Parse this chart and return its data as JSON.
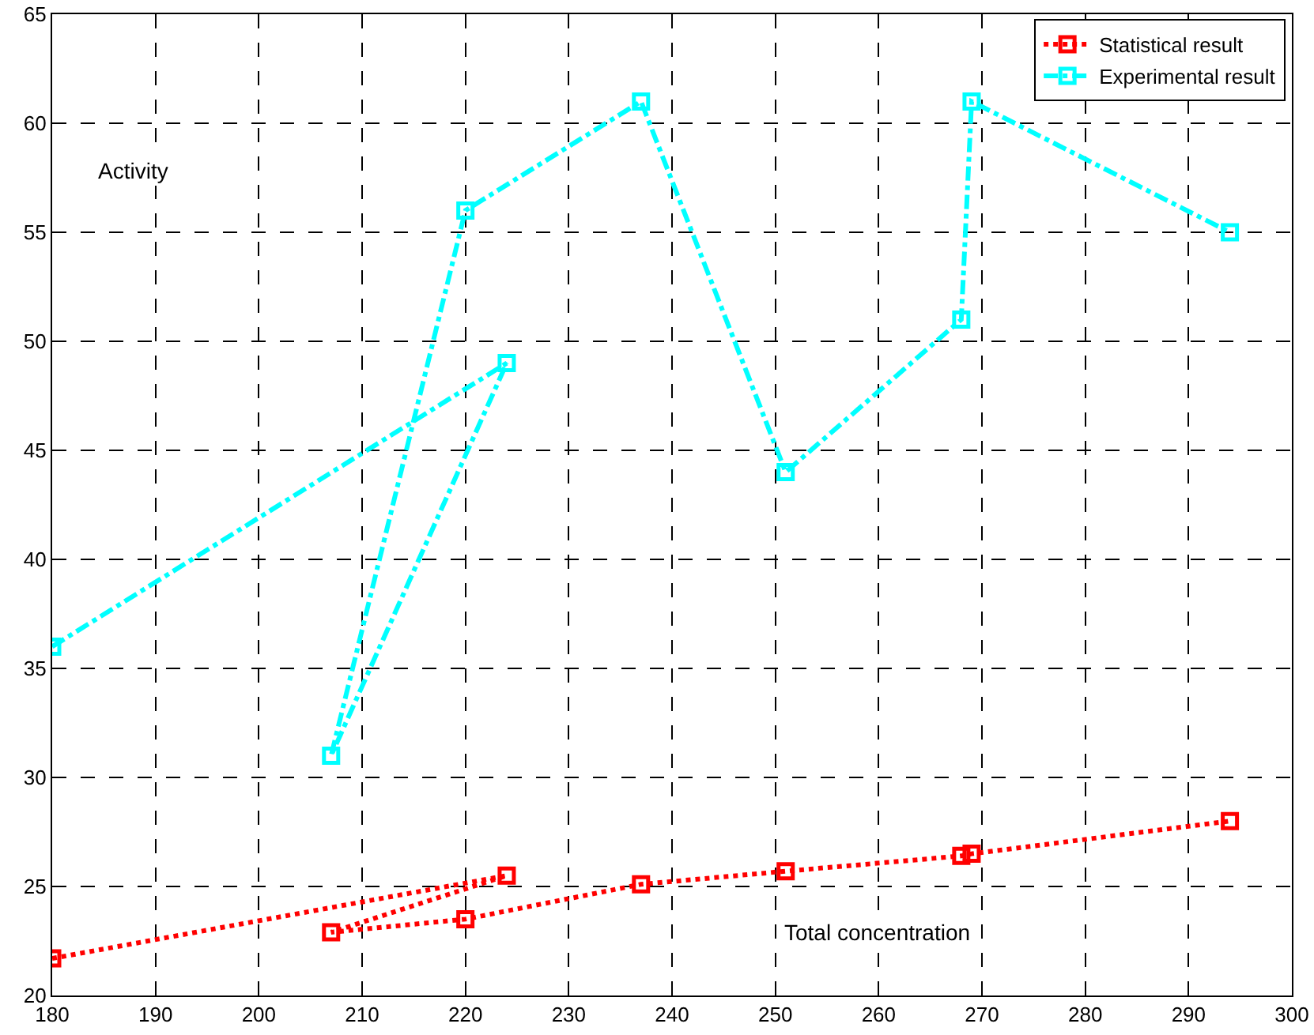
{
  "chart_data": {
    "type": "line",
    "xlabel": "Total concentration",
    "ylabel": "Activity",
    "xlim": [
      180,
      300
    ],
    "xticks": [
      180,
      190,
      200,
      210,
      220,
      230,
      240,
      250,
      260,
      270,
      280,
      290,
      300
    ],
    "ylim": [
      20,
      65
    ],
    "yticks": [
      20,
      25,
      30,
      35,
      40,
      45,
      50,
      55,
      60,
      65
    ],
    "grid": true,
    "legend": "top right",
    "marker": "square",
    "series": [
      {
        "name": "Statistical result",
        "color": "#ff0000",
        "line_style": "dotted",
        "x": [
          180,
          224,
          207,
          220,
          237,
          251,
          268,
          269,
          294
        ],
        "values": [
          21.7,
          25.5,
          22.9,
          23.5,
          25.1,
          25.7,
          26.4,
          26.5,
          28.0
        ]
      },
      {
        "name": "Experimental result",
        "color": "#00ffff",
        "line_style": "dashdot",
        "x": [
          180,
          224,
          207,
          220,
          237,
          251,
          268,
          269,
          294
        ],
        "values": [
          36,
          49,
          31,
          56,
          61,
          44,
          51,
          61,
          55
        ]
      }
    ]
  }
}
